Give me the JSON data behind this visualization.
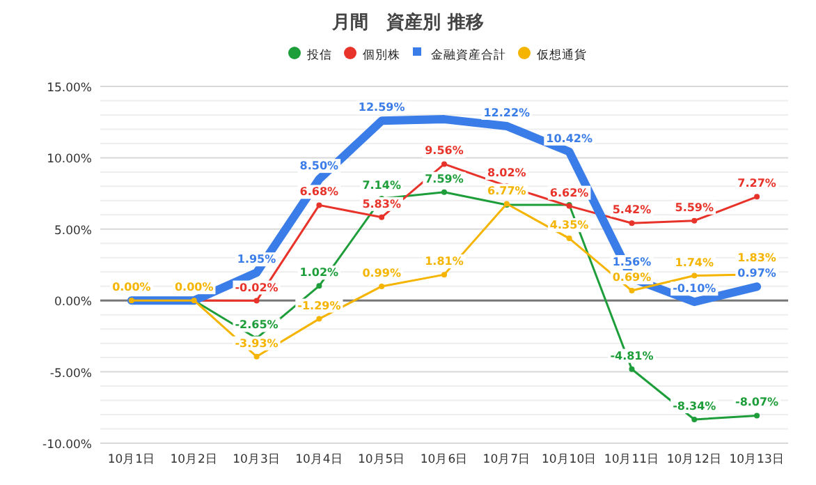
{
  "chart_data": {
    "type": "line",
    "title": "月間　資産別 推移",
    "categories": [
      "10月1日",
      "10月2日",
      "10月3日",
      "10月4日",
      "10月5日",
      "10月6日",
      "10月7日",
      "10月10日",
      "10月11日",
      "10月12日",
      "10月13日"
    ],
    "series": [
      {
        "name": "投信",
        "color": "#1e9e3a",
        "marker": "circle",
        "values": [
          0,
          0,
          -2.65,
          1.02,
          7.14,
          7.59,
          6.7,
          6.7,
          -4.81,
          -8.34,
          -8.07
        ],
        "value_labels": [
          null,
          null,
          "-2.65%",
          "1.02%",
          "7.14%",
          "7.59%",
          null,
          null,
          "-4.81%",
          "-8.34%",
          "-8.07%"
        ]
      },
      {
        "name": "個別株",
        "color": "#e8332a",
        "marker": "circle",
        "values": [
          0,
          0,
          -0.02,
          6.68,
          5.83,
          9.56,
          8.02,
          6.62,
          5.42,
          5.59,
          7.27
        ],
        "value_labels": [
          null,
          null,
          "-0.02%",
          "6.68%",
          "5.83%",
          "9.56%",
          "8.02%",
          "6.62%",
          "5.42%",
          "5.59%",
          "7.27%"
        ]
      },
      {
        "name": "金融資産合計",
        "color": "#3b7de8",
        "marker": "square",
        "values": [
          0,
          0,
          1.95,
          8.5,
          12.59,
          12.7,
          12.22,
          10.42,
          1.56,
          -0.1,
          0.97
        ],
        "value_labels": [
          null,
          null,
          "1.95%",
          "8.50%",
          "12.59%",
          null,
          "12.22%",
          "10.42%",
          "1.56%",
          "-0.10%",
          "0.97%"
        ]
      },
      {
        "name": "仮想通貨",
        "color": "#f4b400",
        "marker": "circle",
        "values": [
          0,
          0,
          -3.93,
          -1.29,
          0.99,
          1.81,
          6.77,
          4.35,
          0.69,
          1.74,
          1.83
        ],
        "value_labels": [
          "0.00%",
          "0.00%",
          "-3.93%",
          "-1.29%",
          "0.99%",
          "1.81%",
          "6.77%",
          "4.35%",
          "0.69%",
          "1.74%",
          "1.83%"
        ]
      }
    ],
    "ylim": [
      -10,
      15
    ],
    "yticks": [
      {
        "value": -10,
        "label": "-10.00%"
      },
      {
        "value": -5,
        "label": "-5.00%"
      },
      {
        "value": 0,
        "label": "0.00%"
      },
      {
        "value": 5,
        "label": "5.00%"
      },
      {
        "value": 10,
        "label": "10.00%"
      },
      {
        "value": 15,
        "label": "15.00%"
      }
    ],
    "grid": "y",
    "legend": "top"
  }
}
